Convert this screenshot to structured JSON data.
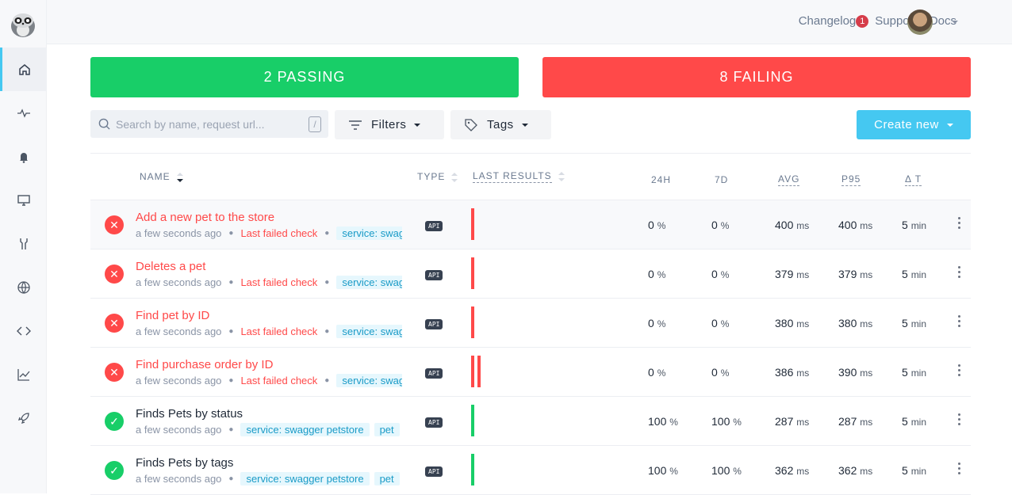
{
  "header": {
    "changelog": "Changelog",
    "changelog_count": "1",
    "support": "Support",
    "docs": "Docs"
  },
  "sidebar": {
    "items": [
      {
        "icon": "home-icon",
        "active": true
      },
      {
        "icon": "activity-icon"
      },
      {
        "icon": "bell-icon"
      },
      {
        "icon": "monitor-icon"
      },
      {
        "icon": "tools-icon"
      },
      {
        "icon": "globe-icon"
      },
      {
        "icon": "code-icon"
      },
      {
        "icon": "chart-icon"
      },
      {
        "icon": "rocket-icon"
      }
    ]
  },
  "summary": {
    "passing": "2 PASSING",
    "failing": "8 FAILING",
    "passing_color": "#18ce68",
    "failing_color": "#ff4949"
  },
  "toolbar": {
    "search_placeholder": "Search by name, request url...",
    "search_shortcut": "/",
    "filters": "Filters",
    "tags": "Tags",
    "create": "Create new"
  },
  "table": {
    "headers": {
      "name": "NAME",
      "type": "TYPE",
      "last_results": "LAST RESULTS",
      "h24": "24H",
      "d7": "7D",
      "avg": "AVG",
      "p95": "P95",
      "dt": "Δ T"
    },
    "rows": [
      {
        "status": "failing",
        "name": "Add a new pet to the store",
        "time": "a few seconds ago",
        "check": "Last failed check",
        "tags": [
          "service: swag"
        ],
        "type": "API",
        "results": [
          "fail"
        ],
        "h24": "0",
        "d7": "0",
        "avg": "400",
        "p95": "400",
        "dt": "5"
      },
      {
        "status": "failing",
        "name": "Deletes a pet",
        "time": "a few seconds ago",
        "check": "Last failed check",
        "tags": [
          "service: swag"
        ],
        "type": "API",
        "results": [
          "fail"
        ],
        "h24": "0",
        "d7": "0",
        "avg": "379",
        "p95": "379",
        "dt": "5"
      },
      {
        "status": "failing",
        "name": "Find pet by ID",
        "time": "a few seconds ago",
        "check": "Last failed check",
        "tags": [
          "service: swag"
        ],
        "type": "API",
        "results": [
          "fail"
        ],
        "h24": "0",
        "d7": "0",
        "avg": "380",
        "p95": "380",
        "dt": "5"
      },
      {
        "status": "failing",
        "name": "Find purchase order by ID",
        "time": "a few seconds ago",
        "check": "Last failed check",
        "tags": [
          "service: swag"
        ],
        "type": "API",
        "results": [
          "fail",
          "fail"
        ],
        "h24": "0",
        "d7": "0",
        "avg": "386",
        "p95": "390",
        "dt": "5"
      },
      {
        "status": "passing",
        "name": "Finds Pets by status",
        "time": "a few seconds ago",
        "check": "",
        "tags": [
          "service: swagger petstore",
          "pet"
        ],
        "type": "API",
        "results": [
          "pass"
        ],
        "h24": "100",
        "d7": "100",
        "avg": "287",
        "p95": "287",
        "dt": "5"
      },
      {
        "status": "passing",
        "name": "Finds Pets by tags",
        "time": "a few seconds ago",
        "check": "",
        "tags": [
          "service: swagger petstore",
          "pet"
        ],
        "type": "API",
        "results": [
          "pass"
        ],
        "h24": "100",
        "d7": "100",
        "avg": "362",
        "p95": "362",
        "dt": "5"
      }
    ],
    "units": {
      "pct": "%",
      "ms": "ms",
      "min": "min"
    }
  }
}
